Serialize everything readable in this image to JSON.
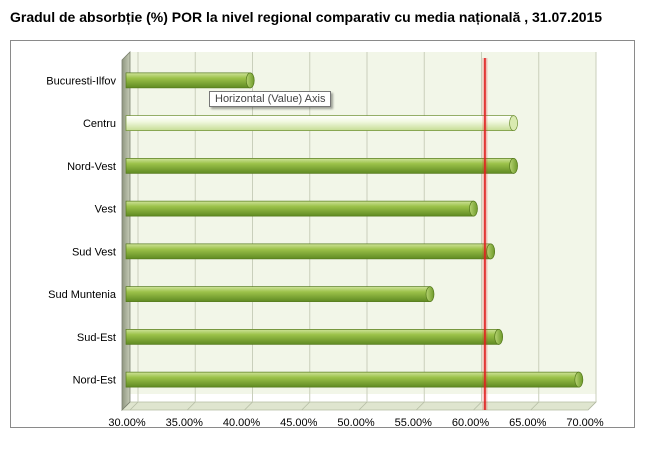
{
  "title": "Gradul de absorbție (%) POR la nivel regional comparativ cu media națională , 31.07.2015",
  "tooltip": "Horizontal (Value) Axis",
  "colors": {
    "bar": "#8cb43c",
    "bar_highlight": "#eaf3d5",
    "average_line": "#e02020",
    "plot_bg": "#f2f6e8",
    "wall": "#a9b09a"
  },
  "chart_data": {
    "type": "bar",
    "orientation": "horizontal",
    "style": "3d-cylinder",
    "categories": [
      "Bucuresti-Ilfov",
      "Centru",
      "Nord-Vest",
      "Vest",
      "Sud Vest",
      "Sud Muntenia",
      "Sud-Est",
      "Nord-Est"
    ],
    "values": [
      40.5,
      63.5,
      63.5,
      60.0,
      61.5,
      56.2,
      62.2,
      69.2
    ],
    "highlighted_category": "Centru",
    "reference_line": {
      "value": 61.0
    },
    "xlim": [
      30,
      70
    ],
    "xticks": [
      "30.00%",
      "35.00%",
      "40.00%",
      "45.00%",
      "50.00%",
      "55.00%",
      "60.00%",
      "65.00%",
      "70.00%"
    ],
    "xtick_values": [
      30,
      35,
      40,
      45,
      50,
      55,
      60,
      65,
      70
    ],
    "grid": true,
    "legend": "none"
  }
}
